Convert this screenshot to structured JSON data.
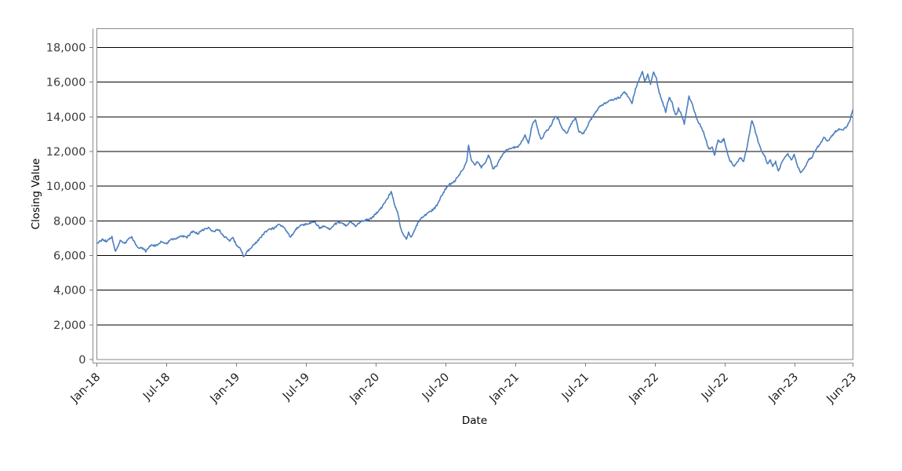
{
  "chart_data": {
    "type": "line",
    "title": "",
    "xlabel": "Date",
    "ylabel": "Closing Value",
    "legend": "none",
    "grid": "horizontal-only",
    "x_axis": {
      "unit": "months-since-Jan-2018",
      "xlim_months": [
        0,
        65
      ],
      "tick_months": [
        0,
        6,
        12,
        18,
        24,
        30,
        36,
        42,
        48,
        54,
        60,
        65
      ],
      "tick_labels": [
        "Jan-18",
        "Jul-18",
        "Jan-19",
        "Jul-19",
        "Jan-20",
        "Jul-20",
        "Jan-21",
        "Jul-21",
        "Jan-22",
        "Jul-22",
        "Jan-23",
        "Jun-23"
      ],
      "tick_label_rotation_deg": -45
    },
    "y_axis": {
      "ylim": [
        0,
        19085
      ],
      "ticks": [
        0,
        2000,
        4000,
        6000,
        8000,
        10000,
        12000,
        14000,
        16000,
        18000
      ],
      "tick_labels": [
        "0",
        "2,000",
        "4,000",
        "6,000",
        "8,000",
        "10,000",
        "12,000",
        "14,000",
        "16,000",
        "18,000"
      ]
    },
    "series": [
      {
        "name": "Closing Value",
        "color": "#4d7ebf",
        "stroke_width": 1.6,
        "points_month_value": [
          [
            0,
            6700
          ],
          [
            0.5,
            6920
          ],
          [
            0.8,
            6830
          ],
          [
            1.3,
            7055
          ],
          [
            1.6,
            6200
          ],
          [
            2,
            6830
          ],
          [
            2.4,
            6695
          ],
          [
            2.8,
            7010
          ],
          [
            3,
            7055
          ],
          [
            3.5,
            6470
          ],
          [
            4,
            6380
          ],
          [
            4.2,
            6240
          ],
          [
            4.65,
            6600
          ],
          [
            5.1,
            6560
          ],
          [
            5.5,
            6785
          ],
          [
            6,
            6695
          ],
          [
            6.4,
            6920
          ],
          [
            6.9,
            7010
          ],
          [
            7.35,
            7145
          ],
          [
            7.75,
            7055
          ],
          [
            8.2,
            7370
          ],
          [
            8.7,
            7280
          ],
          [
            9.1,
            7460
          ],
          [
            9.6,
            7600
          ],
          [
            10.05,
            7370
          ],
          [
            10.45,
            7510
          ],
          [
            10.9,
            7145
          ],
          [
            11.4,
            6830
          ],
          [
            11.7,
            7010
          ],
          [
            12,
            6600
          ],
          [
            12.4,
            6330
          ],
          [
            12.6,
            5925
          ],
          [
            12.95,
            6240
          ],
          [
            13.4,
            6560
          ],
          [
            13.9,
            6900
          ],
          [
            14.4,
            7300
          ],
          [
            14.8,
            7500
          ],
          [
            15.3,
            7600
          ],
          [
            15.65,
            7800
          ],
          [
            16,
            7690
          ],
          [
            16.45,
            7280
          ],
          [
            16.65,
            7055
          ],
          [
            17.1,
            7510
          ],
          [
            17.5,
            7735
          ],
          [
            18,
            7825
          ],
          [
            18.5,
            7915
          ],
          [
            18.7,
            7960
          ],
          [
            19.15,
            7600
          ],
          [
            19.55,
            7690
          ],
          [
            20,
            7510
          ],
          [
            20.5,
            7825
          ],
          [
            20.9,
            7915
          ],
          [
            21.4,
            7735
          ],
          [
            21.85,
            7915
          ],
          [
            22.25,
            7690
          ],
          [
            22.7,
            7960
          ],
          [
            23.2,
            8050
          ],
          [
            23.6,
            8140
          ],
          [
            24.1,
            8500
          ],
          [
            24.55,
            8820
          ],
          [
            24.95,
            9270
          ],
          [
            25.3,
            9700
          ],
          [
            25.6,
            8955
          ],
          [
            25.9,
            8365
          ],
          [
            26.1,
            7600
          ],
          [
            26.3,
            7235
          ],
          [
            26.55,
            7010
          ],
          [
            26.6,
            6920
          ],
          [
            26.8,
            7370
          ],
          [
            27,
            7010
          ],
          [
            27.1,
            7145
          ],
          [
            27.65,
            7960
          ],
          [
            28.1,
            8275
          ],
          [
            28.6,
            8500
          ],
          [
            29,
            8700
          ],
          [
            29.35,
            9000
          ],
          [
            29.6,
            9400
          ],
          [
            29.95,
            9800
          ],
          [
            30.3,
            10100
          ],
          [
            30.7,
            10250
          ],
          [
            31,
            10500
          ],
          [
            31.2,
            10700
          ],
          [
            31.5,
            11000
          ],
          [
            31.8,
            11450
          ],
          [
            31.95,
            12400
          ],
          [
            32.15,
            11600
          ],
          [
            32.3,
            11350
          ],
          [
            32.5,
            11215
          ],
          [
            32.7,
            11440
          ],
          [
            33.05,
            11080
          ],
          [
            33.4,
            11305
          ],
          [
            33.65,
            11760
          ],
          [
            33.85,
            11530
          ],
          [
            34.05,
            11000
          ],
          [
            34.4,
            11215
          ],
          [
            34.9,
            11895
          ],
          [
            35.3,
            12120
          ],
          [
            35.7,
            12210
          ],
          [
            36.2,
            12255
          ],
          [
            36.5,
            12550
          ],
          [
            36.8,
            12935
          ],
          [
            37.1,
            12450
          ],
          [
            37.4,
            13480
          ],
          [
            37.7,
            13840
          ],
          [
            38,
            13025
          ],
          [
            38.2,
            12665
          ],
          [
            38.6,
            13160
          ],
          [
            38.9,
            13340
          ],
          [
            39.4,
            14020
          ],
          [
            39.7,
            13840
          ],
          [
            40,
            13340
          ],
          [
            40.4,
            13050
          ],
          [
            40.75,
            13570
          ],
          [
            40.95,
            13795
          ],
          [
            41.15,
            13930
          ],
          [
            41.45,
            13115
          ],
          [
            41.8,
            13025
          ],
          [
            42.15,
            13400
          ],
          [
            42.35,
            13705
          ],
          [
            42.75,
            14155
          ],
          [
            43.15,
            14520
          ],
          [
            43.6,
            14745
          ],
          [
            44.1,
            14925
          ],
          [
            44.5,
            15000
          ],
          [
            45,
            15150
          ],
          [
            45.3,
            15450
          ],
          [
            45.6,
            15250
          ],
          [
            46,
            14800
          ],
          [
            46.3,
            15600
          ],
          [
            46.7,
            16300
          ],
          [
            46.9,
            16600
          ],
          [
            47.1,
            16050
          ],
          [
            47.35,
            16450
          ],
          [
            47.6,
            15900
          ],
          [
            47.85,
            16550
          ],
          [
            48.05,
            16350
          ],
          [
            48.35,
            15400
          ],
          [
            48.7,
            14700
          ],
          [
            48.9,
            14300
          ],
          [
            49.2,
            15150
          ],
          [
            49.45,
            14800
          ],
          [
            49.6,
            14380
          ],
          [
            49.8,
            14070
          ],
          [
            50,
            14470
          ],
          [
            50.25,
            14150
          ],
          [
            50.5,
            13615
          ],
          [
            50.9,
            15150
          ],
          [
            51.2,
            14700
          ],
          [
            51.6,
            13840
          ],
          [
            51.9,
            13480
          ],
          [
            52.2,
            13030
          ],
          [
            52.4,
            12570
          ],
          [
            52.6,
            12120
          ],
          [
            52.9,
            12270
          ],
          [
            53.1,
            11800
          ],
          [
            53.4,
            12660
          ],
          [
            53.6,
            12510
          ],
          [
            53.9,
            12710
          ],
          [
            54.2,
            11950
          ],
          [
            54.4,
            11530
          ],
          [
            54.75,
            11130
          ],
          [
            54.95,
            11280
          ],
          [
            55.3,
            11670
          ],
          [
            55.6,
            11440
          ],
          [
            55.9,
            12270
          ],
          [
            56.1,
            13030
          ],
          [
            56.3,
            13800
          ],
          [
            56.6,
            13180
          ],
          [
            56.9,
            12440
          ],
          [
            57.2,
            11950
          ],
          [
            57.45,
            11670
          ],
          [
            57.65,
            11280
          ],
          [
            57.9,
            11530
          ],
          [
            58.1,
            11130
          ],
          [
            58.35,
            11400
          ],
          [
            58.6,
            10850
          ],
          [
            58.85,
            11300
          ],
          [
            59.1,
            11600
          ],
          [
            59.4,
            11850
          ],
          [
            59.7,
            11500
          ],
          [
            59.95,
            11830
          ],
          [
            60.2,
            11200
          ],
          [
            60.5,
            10760
          ],
          [
            60.75,
            10950
          ],
          [
            61,
            11250
          ],
          [
            61.2,
            11530
          ],
          [
            61.5,
            11670
          ],
          [
            61.8,
            12120
          ],
          [
            62.2,
            12440
          ],
          [
            62.5,
            12800
          ],
          [
            62.85,
            12600
          ],
          [
            63.2,
            12900
          ],
          [
            63.5,
            13150
          ],
          [
            63.85,
            13300
          ],
          [
            64.1,
            13200
          ],
          [
            64.4,
            13400
          ],
          [
            64.7,
            13700
          ],
          [
            64.85,
            14100
          ],
          [
            65,
            14400
          ]
        ]
      }
    ],
    "texture": {
      "noise_seed": 20180101,
      "noise_amplitude": 110,
      "sample_step_months": 0.06
    }
  },
  "colors": {
    "background": "#ffffff",
    "line": "#4d7ebf",
    "gridline": "#000000",
    "axis_and_border": "#8a8a8a",
    "tick_mark": "#7d7d7d",
    "y_tick_text": "#3a3a3a",
    "x_tick_text": "#1d1d1d",
    "axis_title_text": "#000000"
  }
}
